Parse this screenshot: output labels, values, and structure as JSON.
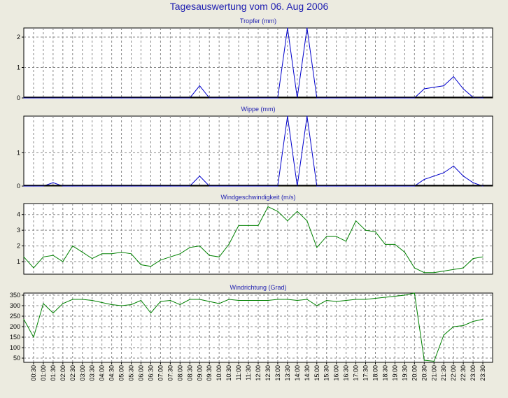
{
  "page_title": "Tagesauswertung vom 06. Aug 2006",
  "time_labels": [
    "00:30",
    "01:00",
    "01:30",
    "02:00",
    "02:30",
    "03:00",
    "03:30",
    "04:00",
    "04:30",
    "05:00",
    "05:30",
    "06:00",
    "06:30",
    "07:00",
    "07:30",
    "08:00",
    "08:30",
    "09:00",
    "09:30",
    "10:00",
    "10:30",
    "11:00",
    "11:30",
    "12:00",
    "12:30",
    "13:00",
    "13:30",
    "14:00",
    "14:30",
    "15:00",
    "15:30",
    "16:00",
    "16:30",
    "17:00",
    "17:30",
    "18:00",
    "18:30",
    "19:00",
    "19:30",
    "20:00",
    "20:30",
    "21:00",
    "21:30",
    "22:00",
    "22:30",
    "23:00",
    "23:30"
  ],
  "chart_data": [
    {
      "type": "line",
      "title": "Tropfer (mm)",
      "color": "#0000cc",
      "ylim": [
        0,
        2.3
      ],
      "yticks": [
        0,
        1,
        2
      ],
      "x": [
        "00:00",
        "00:30",
        "01:00",
        "01:30",
        "02:00",
        "02:30",
        "03:00",
        "03:30",
        "04:00",
        "04:30",
        "05:00",
        "05:30",
        "06:00",
        "06:30",
        "07:00",
        "07:30",
        "08:00",
        "08:30",
        "09:00",
        "09:30",
        "10:00",
        "10:30",
        "11:00",
        "11:30",
        "12:00",
        "12:30",
        "13:00",
        "13:30",
        "14:00",
        "14:30",
        "15:00",
        "15:30",
        "16:00",
        "16:30",
        "17:00",
        "17:30",
        "18:00",
        "18:30",
        "19:00",
        "19:30",
        "20:00",
        "20:30",
        "21:00",
        "21:30",
        "22:00",
        "22:30",
        "23:00",
        "23:30"
      ],
      "values": [
        0,
        0,
        0,
        0,
        0,
        0,
        0,
        0,
        0,
        0,
        0,
        0,
        0,
        0,
        0,
        0,
        0,
        0,
        0.4,
        0,
        0,
        0,
        0,
        0,
        0,
        0,
        0,
        2.3,
        0,
        2.3,
        0,
        0,
        0,
        0,
        0,
        0,
        0,
        0,
        0,
        0,
        0,
        0.3,
        0.35,
        0.4,
        0.7,
        0.3,
        0.02,
        0
      ]
    },
    {
      "type": "line",
      "title": "Wippe (mm)",
      "color": "#0000cc",
      "ylim": [
        0,
        2.1
      ],
      "yticks": [
        0,
        1
      ],
      "x": [
        "00:00",
        "00:30",
        "01:00",
        "01:30",
        "02:00",
        "02:30",
        "03:00",
        "03:30",
        "04:00",
        "04:30",
        "05:00",
        "05:30",
        "06:00",
        "06:30",
        "07:00",
        "07:30",
        "08:00",
        "08:30",
        "09:00",
        "09:30",
        "10:00",
        "10:30",
        "11:00",
        "11:30",
        "12:00",
        "12:30",
        "13:00",
        "13:30",
        "14:00",
        "14:30",
        "15:00",
        "15:30",
        "16:00",
        "16:30",
        "17:00",
        "17:30",
        "18:00",
        "18:30",
        "19:00",
        "19:30",
        "20:00",
        "20:30",
        "21:00",
        "21:30",
        "22:00",
        "22:30",
        "23:00",
        "23:30"
      ],
      "values": [
        0,
        0,
        0,
        0.1,
        0,
        0,
        0,
        0,
        0,
        0,
        0,
        0,
        0,
        0,
        0,
        0,
        0,
        0,
        0.3,
        0,
        0,
        0,
        0,
        0,
        0,
        0,
        0,
        2.1,
        0,
        2.1,
        0,
        0,
        0,
        0,
        0,
        0,
        0,
        0,
        0,
        0,
        0,
        0.2,
        0.3,
        0.4,
        0.6,
        0.3,
        0.1,
        0
      ]
    },
    {
      "type": "line",
      "title": "Windgeschwindigkeit (m/s)",
      "color": "#008000",
      "ylim": [
        0.2,
        4.7
      ],
      "yticks": [
        1,
        2,
        3,
        4
      ],
      "x": [
        "00:00",
        "00:30",
        "01:00",
        "01:30",
        "02:00",
        "02:30",
        "03:00",
        "03:30",
        "04:00",
        "04:30",
        "05:00",
        "05:30",
        "06:00",
        "06:30",
        "07:00",
        "07:30",
        "08:00",
        "08:30",
        "09:00",
        "09:30",
        "10:00",
        "10:30",
        "11:00",
        "11:30",
        "12:00",
        "12:30",
        "13:00",
        "13:30",
        "14:00",
        "14:30",
        "15:00",
        "15:30",
        "16:00",
        "16:30",
        "17:00",
        "17:30",
        "18:00",
        "18:30",
        "19:00",
        "19:30",
        "20:00",
        "20:30",
        "21:00",
        "21:30",
        "22:00",
        "22:30",
        "23:00",
        "23:30"
      ],
      "values": [
        1.3,
        0.6,
        1.3,
        1.4,
        1.0,
        2.0,
        1.6,
        1.2,
        1.5,
        1.5,
        1.6,
        1.5,
        0.8,
        0.7,
        1.1,
        1.3,
        1.5,
        1.9,
        2.0,
        1.4,
        1.3,
        2.1,
        3.3,
        3.3,
        3.3,
        4.5,
        4.2,
        3.6,
        4.2,
        3.6,
        1.9,
        2.6,
        2.6,
        2.3,
        3.6,
        3.0,
        2.9,
        2.1,
        2.1,
        1.6,
        0.6,
        0.3,
        0.3,
        0.4,
        0.5,
        0.6,
        1.2,
        1.3
      ]
    },
    {
      "type": "line",
      "title": "Windrichtung (Grad)",
      "color": "#008000",
      "ylim": [
        30,
        360
      ],
      "yticks": [
        50,
        100,
        150,
        200,
        250,
        300,
        350
      ],
      "x": [
        "00:00",
        "00:30",
        "01:00",
        "01:30",
        "02:00",
        "02:30",
        "03:00",
        "03:30",
        "04:00",
        "04:30",
        "05:00",
        "05:30",
        "06:00",
        "06:30",
        "07:00",
        "07:30",
        "08:00",
        "08:30",
        "09:00",
        "09:30",
        "10:00",
        "10:30",
        "11:00",
        "11:30",
        "12:00",
        "12:30",
        "13:00",
        "13:30",
        "14:00",
        "14:30",
        "15:00",
        "15:30",
        "16:00",
        "16:30",
        "17:00",
        "17:30",
        "18:00",
        "18:30",
        "19:00",
        "19:30",
        "20:00",
        "20:30",
        "21:00",
        "21:30",
        "22:00",
        "22:30",
        "23:00",
        "23:30"
      ],
      "values": [
        235,
        150,
        310,
        265,
        310,
        330,
        330,
        325,
        315,
        305,
        300,
        305,
        325,
        265,
        320,
        325,
        305,
        330,
        330,
        320,
        310,
        330,
        325,
        325,
        325,
        325,
        330,
        330,
        325,
        330,
        300,
        325,
        320,
        325,
        330,
        330,
        335,
        340,
        345,
        350,
        360,
        40,
        35,
        160,
        200,
        205,
        225,
        235
      ]
    }
  ]
}
